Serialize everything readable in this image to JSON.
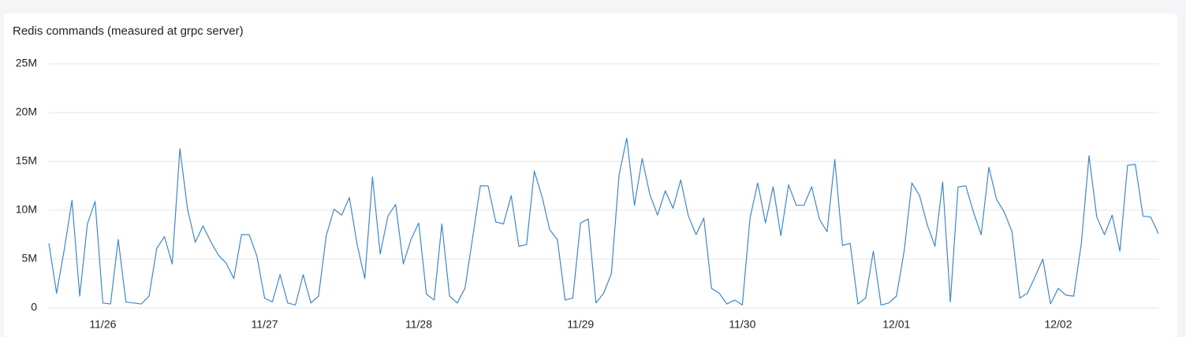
{
  "chart_data": {
    "type": "line",
    "title": "Redis commands (measured at grpc server)",
    "color": "#3f87cc",
    "grid": true,
    "ylim": [
      0,
      25
    ],
    "yticks": [
      0,
      {
        "value": 5,
        "label": "5M"
      },
      {
        "value": 10,
        "label": "10M"
      },
      {
        "value": 15,
        "label": "15M"
      },
      {
        "value": 20,
        "label": "20M"
      },
      {
        "value": 25,
        "label": "25M"
      }
    ],
    "categories": [
      null,
      null,
      null,
      null,
      null,
      null,
      null,
      "11/26",
      null,
      null,
      null,
      null,
      null,
      null,
      null,
      null,
      null,
      null,
      null,
      null,
      null,
      null,
      null,
      null,
      null,
      null,
      null,
      null,
      "11/27",
      null,
      null,
      null,
      null,
      null,
      null,
      null,
      null,
      null,
      null,
      null,
      null,
      null,
      null,
      null,
      null,
      null,
      null,
      null,
      "11/28",
      null,
      null,
      null,
      null,
      null,
      null,
      null,
      null,
      null,
      null,
      null,
      null,
      null,
      null,
      null,
      null,
      null,
      null,
      null,
      null,
      "11/29",
      null,
      null,
      null,
      null,
      null,
      null,
      null,
      null,
      null,
      null,
      null,
      null,
      null,
      null,
      null,
      null,
      null,
      null,
      null,
      null,
      "11/30",
      null,
      null,
      null,
      null,
      null,
      null,
      null,
      null,
      null,
      null,
      null,
      null,
      null,
      null,
      null,
      null,
      null,
      null,
      null,
      "12/01",
      null,
      null,
      null,
      null,
      null,
      null,
      null,
      null,
      null,
      null,
      null,
      null,
      null,
      null,
      null,
      null,
      null,
      null,
      null,
      null,
      "12/02",
      null,
      null,
      null,
      null,
      null,
      null,
      null,
      null,
      null,
      null,
      null,
      null,
      null
    ],
    "values": [
      6.6,
      1.5,
      6,
      11,
      1.2,
      8.6,
      10.9,
      0.5,
      0.4,
      7,
      0.6,
      0.5,
      0.4,
      1.2,
      6.1,
      7.3,
      4.5,
      16.3,
      10.1,
      6.7,
      8.4,
      6.8,
      5.4,
      4.6,
      3,
      7.5,
      7.5,
      5.3,
      1,
      0.6,
      3.4,
      0.5,
      0.3,
      3.4,
      0.5,
      1.2,
      7.4,
      10.1,
      9.5,
      11.3,
      6.5,
      3,
      13.4,
      5.5,
      9.4,
      10.6,
      4.5,
      7,
      8.7,
      1.4,
      0.8,
      8.6,
      1.2,
      0.5,
      2,
      7.2,
      12.5,
      12.5,
      8.8,
      8.6,
      11.5,
      6.3,
      6.5,
      14,
      11.4,
      8,
      7,
      0.8,
      1,
      8.7,
      9.1,
      0.5,
      1.5,
      3.5,
      13.6,
      17.4,
      10.5,
      15.3,
      11.6,
      9.5,
      12,
      10.2,
      13.1,
      9.4,
      7.5,
      9.2,
      2,
      1.5,
      0.4,
      0.8,
      0.3,
      9.2,
      12.8,
      8.7,
      12.4,
      7.4,
      12.6,
      10.5,
      10.5,
      12.4,
      9.1,
      7.8,
      15.2,
      6.4,
      6.6,
      0.4,
      1,
      5.8,
      0.3,
      0.5,
      1.2,
      5.8,
      12.8,
      11.5,
      8.5,
      6.3,
      12.9,
      0.6,
      12.4,
      12.5,
      9.8,
      7.5,
      14.4,
      11.1,
      9.8,
      7.8,
      1,
      1.5,
      3.2,
      5,
      0.4,
      2,
      1.3,
      1.2,
      6.6,
      15.6,
      9.3,
      7.5,
      9.5,
      5.8,
      14.6,
      14.7,
      9.4,
      9.3,
      7.6
    ]
  }
}
